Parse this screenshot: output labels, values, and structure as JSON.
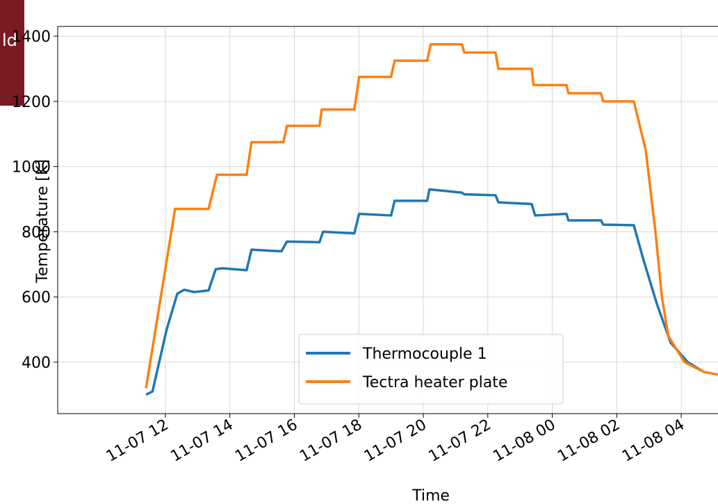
{
  "chart_data": {
    "type": "line",
    "edge_fragment_text": "ld",
    "x_label": "Time",
    "y_label": "Temperature [K]",
    "xlim": [
      8.66,
      29.14
    ],
    "ylim": [
      242,
      1430
    ],
    "xticks": [
      {
        "value": 12,
        "label": "11-07 12"
      },
      {
        "value": 14,
        "label": "11-07 14"
      },
      {
        "value": 16,
        "label": "11-07 16"
      },
      {
        "value": 18,
        "label": "11-07 18"
      },
      {
        "value": 20,
        "label": "11-07 20"
      },
      {
        "value": 22,
        "label": "11-07 22"
      },
      {
        "value": 24,
        "label": "11-08 00"
      },
      {
        "value": 26,
        "label": "11-08 02"
      },
      {
        "value": 28,
        "label": "11-08 04"
      }
    ],
    "yticks": [
      400,
      600,
      800,
      1000,
      1200,
      1400
    ],
    "grid": true,
    "legend": "lower center",
    "series": [
      {
        "name": "Thermocouple 1",
        "color": "#1f77b4",
        "x": [
          11.4,
          11.6,
          12.04,
          12.37,
          12.58,
          12.9,
          13.34,
          13.56,
          13.77,
          14.52,
          14.67,
          15.6,
          15.77,
          16.78,
          16.89,
          17.86,
          18.01,
          19.0,
          19.11,
          20.12,
          20.19,
          21.2,
          21.27,
          22.24,
          22.33,
          23.36,
          23.47,
          24.44,
          24.5,
          25.51,
          25.58,
          26.53,
          26.81,
          27.24,
          27.67,
          28.2,
          28.7
        ],
        "values": [
          300,
          310,
          500,
          610,
          622,
          615,
          620,
          685,
          688,
          682,
          745,
          740,
          770,
          768,
          800,
          795,
          855,
          850,
          895,
          895,
          930,
          920,
          915,
          912,
          890,
          885,
          850,
          855,
          835,
          835,
          822,
          820,
          720,
          580,
          460,
          400,
          370
        ]
      },
      {
        "name": "Tectra heater plate",
        "color": "#ff7f0e",
        "x": [
          11.4,
          12.3,
          13.34,
          13.6,
          14.52,
          14.67,
          15.66,
          15.77,
          16.78,
          16.85,
          17.86,
          18.01,
          19.0,
          19.11,
          20.12,
          20.23,
          21.2,
          21.27,
          22.24,
          22.33,
          23.36,
          23.42,
          24.44,
          24.5,
          25.51,
          25.58,
          26.53,
          26.9,
          27.2,
          27.4,
          27.6,
          28.1,
          28.7,
          29.13
        ],
        "values": [
          320,
          870,
          870,
          975,
          975,
          1075,
          1075,
          1125,
          1125,
          1175,
          1175,
          1275,
          1275,
          1325,
          1325,
          1375,
          1375,
          1350,
          1350,
          1300,
          1300,
          1250,
          1250,
          1225,
          1225,
          1200,
          1200,
          1050,
          800,
          600,
          480,
          400,
          370,
          362
        ]
      }
    ]
  }
}
